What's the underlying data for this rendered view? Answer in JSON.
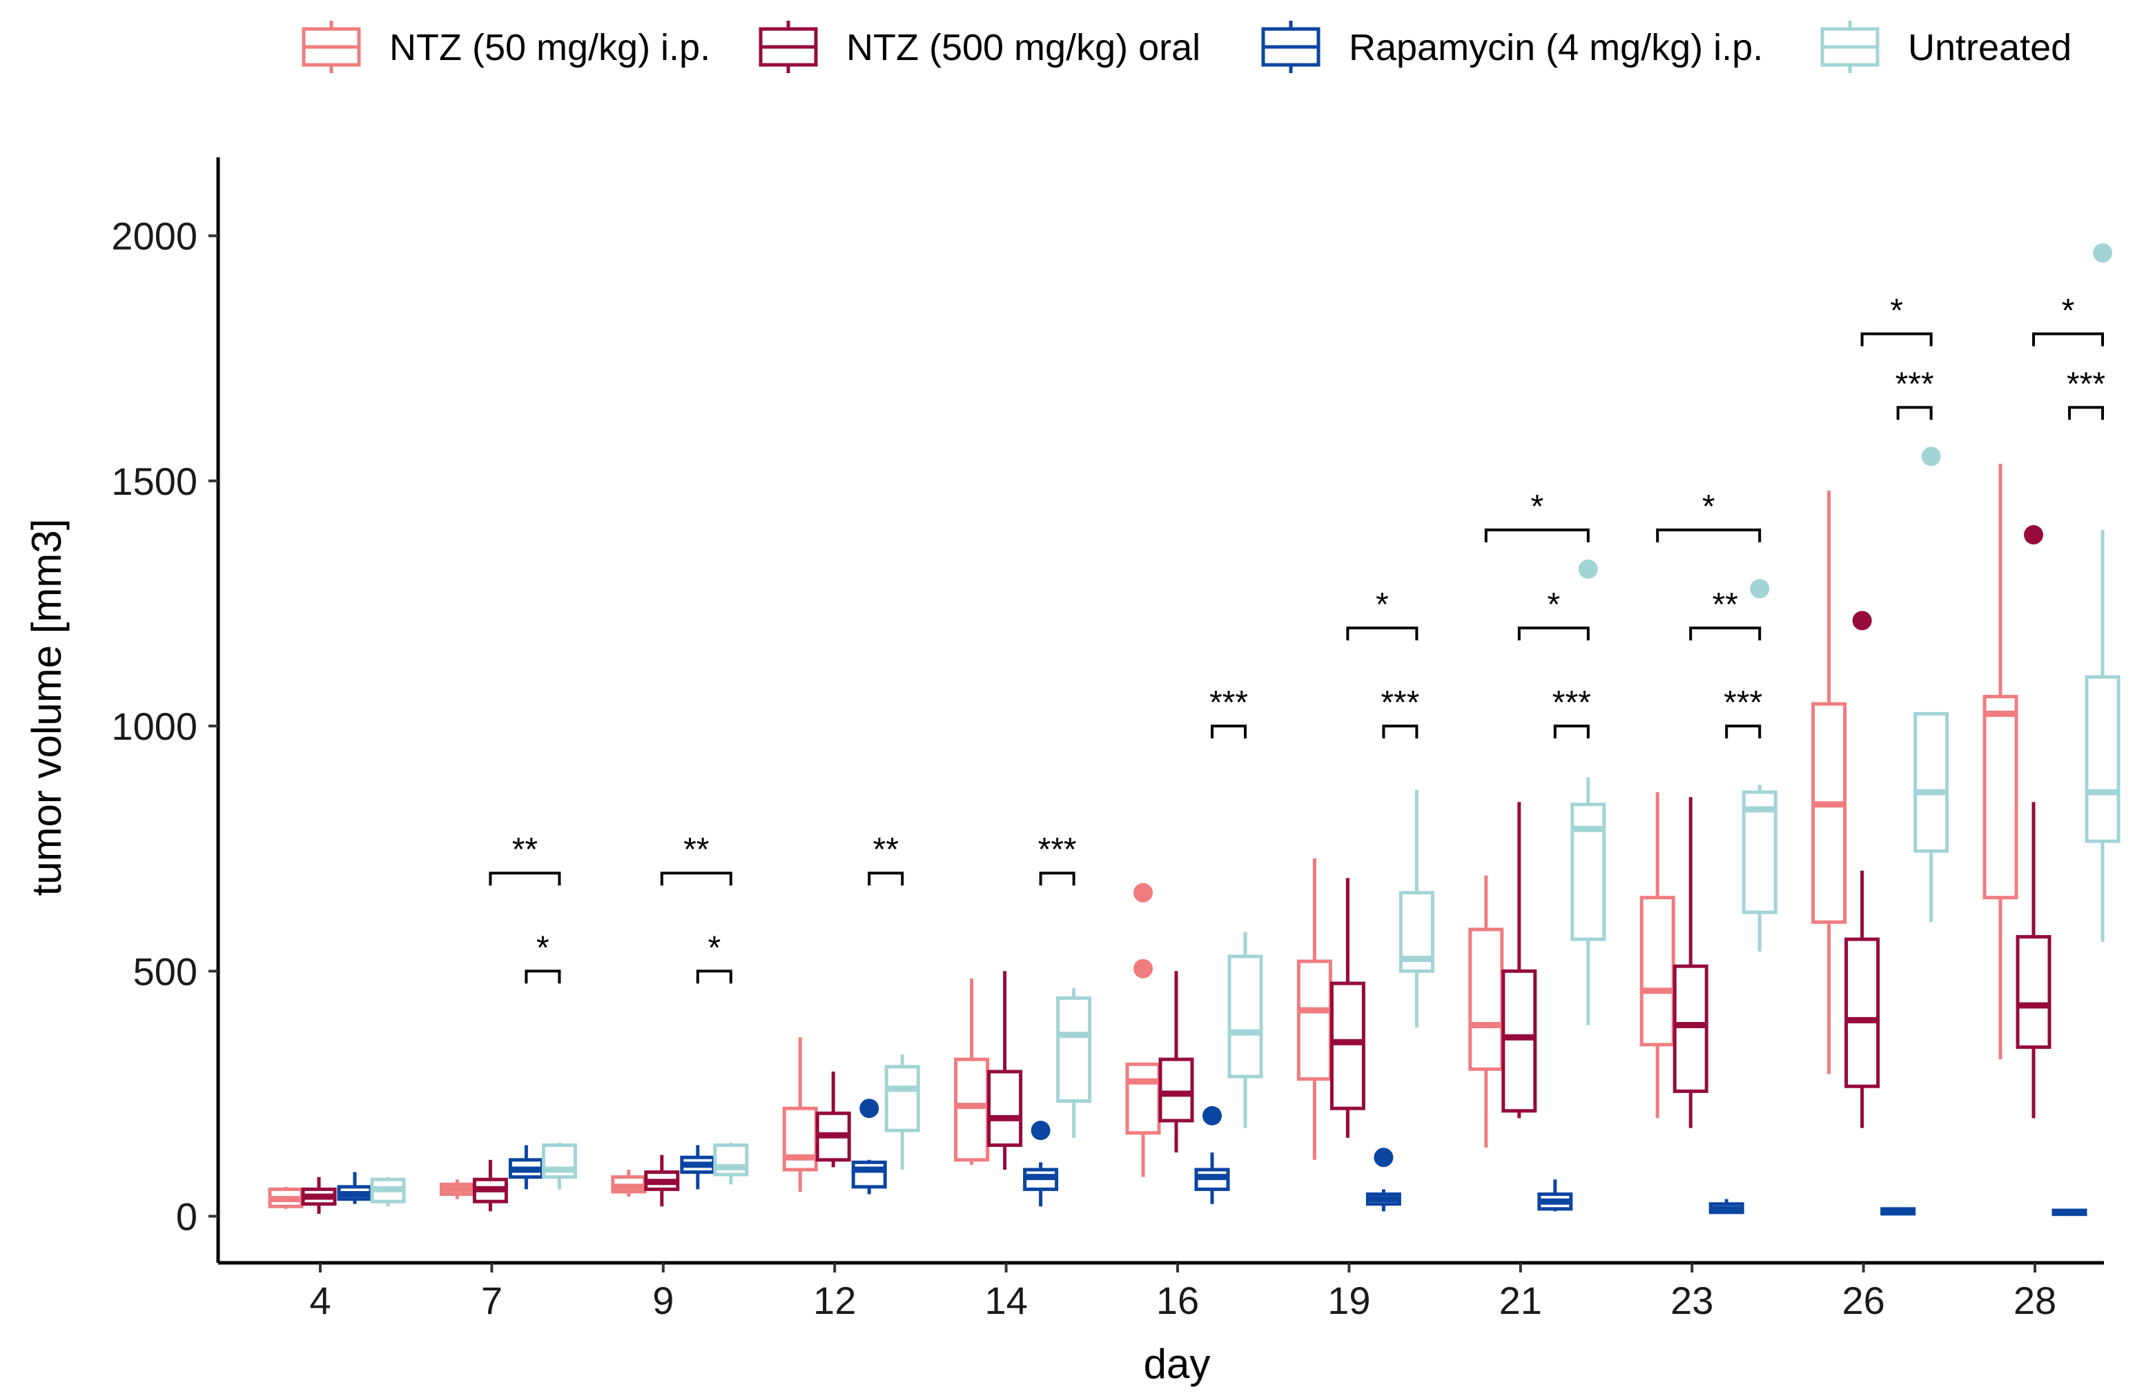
{
  "chart_data": {
    "type": "boxplot",
    "title": "",
    "xlabel": "day",
    "ylabel": "tumor volume [mm3]",
    "ylim": [
      -95,
      2160
    ],
    "yticks": [
      0,
      500,
      1000,
      1500,
      2000
    ],
    "categories": [
      "4",
      "7",
      "9",
      "12",
      "14",
      "16",
      "19",
      "21",
      "23",
      "26",
      "28"
    ],
    "legend_position": "top",
    "series": [
      {
        "name": "NTZ (50 mg/kg) i.p.",
        "color": "#F07C7F",
        "boxes": [
          {
            "min": 15,
            "q1": 20,
            "median": 35,
            "q3": 55,
            "max": 60,
            "outliers": []
          },
          {
            "min": 35,
            "q1": 45,
            "median": 55,
            "q3": 65,
            "max": 75,
            "outliers": []
          },
          {
            "min": 40,
            "q1": 50,
            "median": 60,
            "q3": 80,
            "max": 95,
            "outliers": []
          },
          {
            "min": 50,
            "q1": 95,
            "median": 120,
            "q3": 220,
            "max": 365,
            "outliers": []
          },
          {
            "min": 105,
            "q1": 115,
            "median": 225,
            "q3": 320,
            "max": 485,
            "outliers": []
          },
          {
            "min": 80,
            "q1": 170,
            "median": 275,
            "q3": 310,
            "max": 310,
            "outliers": [
              505,
              660
            ]
          },
          {
            "min": 115,
            "q1": 280,
            "median": 420,
            "q3": 520,
            "max": 730,
            "outliers": []
          },
          {
            "min": 140,
            "q1": 300,
            "median": 390,
            "q3": 585,
            "max": 695,
            "outliers": []
          },
          {
            "min": 200,
            "q1": 350,
            "median": 460,
            "q3": 650,
            "max": 865,
            "outliers": []
          },
          {
            "min": 290,
            "q1": 600,
            "median": 840,
            "q3": 1045,
            "max": 1480,
            "outliers": []
          },
          {
            "min": 320,
            "q1": 650,
            "median": 1025,
            "q3": 1060,
            "max": 1535,
            "outliers": []
          }
        ]
      },
      {
        "name": "NTZ (500 mg/kg) oral",
        "color": "#960A3C",
        "boxes": [
          {
            "min": 5,
            "q1": 25,
            "median": 40,
            "q3": 55,
            "max": 80,
            "outliers": []
          },
          {
            "min": 10,
            "q1": 30,
            "median": 55,
            "q3": 75,
            "max": 115,
            "outliers": []
          },
          {
            "min": 20,
            "q1": 55,
            "median": 70,
            "q3": 90,
            "max": 125,
            "outliers": []
          },
          {
            "min": 100,
            "q1": 115,
            "median": 165,
            "q3": 210,
            "max": 295,
            "outliers": []
          },
          {
            "min": 95,
            "q1": 145,
            "median": 200,
            "q3": 295,
            "max": 500,
            "outliers": []
          },
          {
            "min": 130,
            "q1": 195,
            "median": 250,
            "q3": 320,
            "max": 500,
            "outliers": []
          },
          {
            "min": 160,
            "q1": 220,
            "median": 355,
            "q3": 475,
            "max": 690,
            "outliers": []
          },
          {
            "min": 200,
            "q1": 215,
            "median": 365,
            "q3": 500,
            "max": 845,
            "outliers": []
          },
          {
            "min": 180,
            "q1": 255,
            "median": 390,
            "q3": 510,
            "max": 855,
            "outliers": []
          },
          {
            "min": 180,
            "q1": 265,
            "median": 400,
            "q3": 565,
            "max": 705,
            "outliers": [
              1215
            ]
          },
          {
            "min": 200,
            "q1": 345,
            "median": 430,
            "q3": 570,
            "max": 845,
            "outliers": [
              1390
            ]
          }
        ]
      },
      {
        "name": "Rapamycin (4 mg/kg) i.p.",
        "color": "#0B45A2",
        "boxes": [
          {
            "min": 25,
            "q1": 35,
            "median": 45,
            "q3": 60,
            "max": 90,
            "outliers": []
          },
          {
            "min": 55,
            "q1": 80,
            "median": 95,
            "q3": 115,
            "max": 145,
            "outliers": []
          },
          {
            "min": 55,
            "q1": 90,
            "median": 105,
            "q3": 120,
            "max": 145,
            "outliers": []
          },
          {
            "min": 45,
            "q1": 60,
            "median": 95,
            "q3": 110,
            "max": 115,
            "outliers": [
              220
            ]
          },
          {
            "min": 20,
            "q1": 55,
            "median": 80,
            "q3": 95,
            "max": 110,
            "outliers": [
              175
            ]
          },
          {
            "min": 25,
            "q1": 55,
            "median": 80,
            "q3": 95,
            "max": 130,
            "outliers": [
              205
            ]
          },
          {
            "min": 10,
            "q1": 25,
            "median": 35,
            "q3": 45,
            "max": 55,
            "outliers": [
              120
            ]
          },
          {
            "min": 10,
            "q1": 15,
            "median": 30,
            "q3": 45,
            "max": 75,
            "outliers": []
          },
          {
            "min": 5,
            "q1": 8,
            "median": 15,
            "q3": 25,
            "max": 35,
            "outliers": []
          },
          {
            "min": 3,
            "q1": 5,
            "median": 10,
            "q3": 15,
            "max": 18,
            "outliers": []
          },
          {
            "min": 2,
            "q1": 4,
            "median": 7,
            "q3": 12,
            "max": 15,
            "outliers": []
          }
        ]
      },
      {
        "name": "Untreated",
        "color": "#A2D4D6",
        "boxes": [
          {
            "min": 20,
            "q1": 30,
            "median": 55,
            "q3": 75,
            "max": 80,
            "outliers": []
          },
          {
            "min": 55,
            "q1": 80,
            "median": 95,
            "q3": 145,
            "max": 150,
            "outliers": []
          },
          {
            "min": 65,
            "q1": 85,
            "median": 100,
            "q3": 145,
            "max": 150,
            "outliers": []
          },
          {
            "min": 95,
            "q1": 175,
            "median": 260,
            "q3": 305,
            "max": 330,
            "outliers": []
          },
          {
            "min": 160,
            "q1": 235,
            "median": 370,
            "q3": 445,
            "max": 465,
            "outliers": []
          },
          {
            "min": 180,
            "q1": 285,
            "median": 375,
            "q3": 530,
            "max": 580,
            "outliers": []
          },
          {
            "min": 385,
            "q1": 500,
            "median": 525,
            "q3": 660,
            "max": 870,
            "outliers": []
          },
          {
            "min": 390,
            "q1": 565,
            "median": 790,
            "q3": 840,
            "max": 895,
            "outliers": [
              1320
            ]
          },
          {
            "min": 540,
            "q1": 620,
            "median": 830,
            "q3": 865,
            "max": 880,
            "outliers": [
              1280
            ]
          },
          {
            "min": 600,
            "q1": 745,
            "median": 865,
            "q3": 1025,
            "max": 1025,
            "outliers": [
              1550
            ]
          },
          {
            "min": 560,
            "q1": 765,
            "median": 865,
            "q3": 1100,
            "max": 1400,
            "outliers": [
              1965
            ]
          }
        ]
      }
    ],
    "annotations": [
      {
        "day": "7",
        "from": 1,
        "to": 3,
        "y": 700,
        "label": "**"
      },
      {
        "day": "7",
        "from": 2,
        "to": 3,
        "y": 500,
        "label": "*"
      },
      {
        "day": "9",
        "from": 1,
        "to": 3,
        "y": 700,
        "label": "**"
      },
      {
        "day": "9",
        "from": 2,
        "to": 3,
        "y": 500,
        "label": "*"
      },
      {
        "day": "12",
        "from": 2,
        "to": 3,
        "y": 700,
        "label": "**"
      },
      {
        "day": "14",
        "from": 2,
        "to": 3,
        "y": 700,
        "label": "***"
      },
      {
        "day": "16",
        "from": 2,
        "to": 3,
        "y": 1000,
        "label": "***"
      },
      {
        "day": "19",
        "from": 2,
        "to": 3,
        "y": 1000,
        "label": "***"
      },
      {
        "day": "19",
        "from": 1,
        "to": 3,
        "y": 1200,
        "label": "*"
      },
      {
        "day": "21",
        "from": 2,
        "to": 3,
        "y": 1000,
        "label": "***"
      },
      {
        "day": "21",
        "from": 1,
        "to": 3,
        "y": 1200,
        "label": "*"
      },
      {
        "day": "21",
        "from": 0,
        "to": 3,
        "y": 1400,
        "label": "*"
      },
      {
        "day": "23",
        "from": 2,
        "to": 3,
        "y": 1000,
        "label": "***"
      },
      {
        "day": "23",
        "from": 1,
        "to": 3,
        "y": 1200,
        "label": "**"
      },
      {
        "day": "23",
        "from": 0,
        "to": 3,
        "y": 1400,
        "label": "*"
      },
      {
        "day": "26",
        "from": 2,
        "to": 3,
        "y": 1650,
        "label": "***"
      },
      {
        "day": "26",
        "from": 1,
        "to": 3,
        "y": 1800,
        "label": "*"
      },
      {
        "day": "28",
        "from": 2,
        "to": 3,
        "y": 1650,
        "label": "***"
      },
      {
        "day": "28",
        "from": 1,
        "to": 3,
        "y": 1800,
        "label": "*"
      }
    ]
  }
}
